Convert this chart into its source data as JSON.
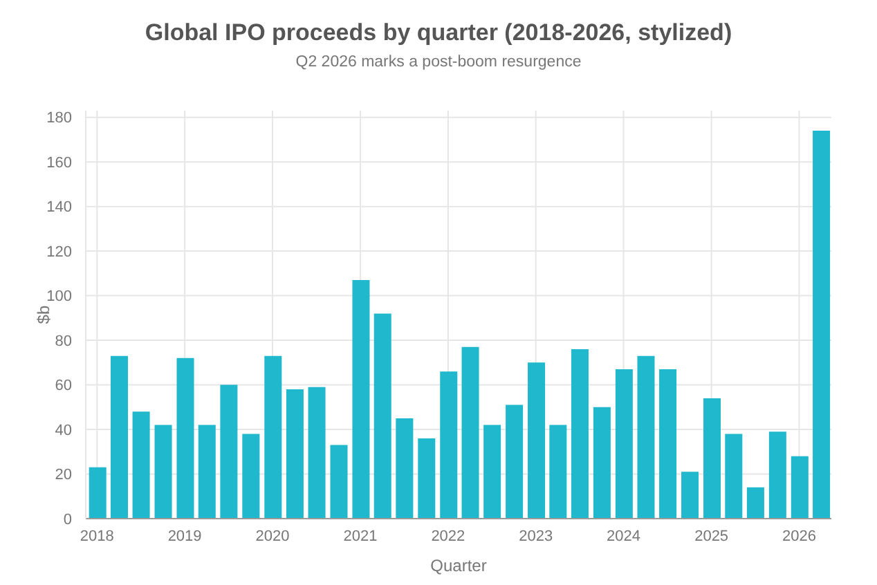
{
  "chart_data": {
    "type": "bar",
    "title": "Global IPO proceeds by quarter (2018-2026, stylized)",
    "subtitle": "Q2 2026 marks a post-boom resurgence",
    "xlabel": "Quarter",
    "ylabel": "$b",
    "x": [
      "2018-01",
      "2018-04",
      "2018-07",
      "2018-10",
      "2019-01",
      "2019-04",
      "2019-07",
      "2019-10",
      "2020-01",
      "2020-04",
      "2020-07",
      "2020-10",
      "2021-01",
      "2021-04",
      "2021-07",
      "2021-10",
      "2022-01",
      "2022-04",
      "2022-07",
      "2022-10",
      "2023-01",
      "2023-04",
      "2023-07",
      "2023-10",
      "2024-01",
      "2024-04",
      "2024-07",
      "2024-10",
      "2025-01",
      "2025-04",
      "2025-07",
      "2025-10",
      "2026-01",
      "2026-04"
    ],
    "values": [
      23,
      73,
      48,
      42,
      72,
      42,
      60,
      38,
      73,
      58,
      59,
      33,
      107,
      92,
      45,
      36,
      66,
      77,
      42,
      51,
      70,
      42,
      76,
      50,
      67,
      73,
      67,
      21,
      54,
      38,
      14,
      39,
      28,
      174
    ],
    "color": "#1fb8cd",
    "xlim": [
      "2017-11-15",
      "2026-05-15"
    ],
    "xticks": [
      "2018",
      "2019",
      "2020",
      "2021",
      "2022",
      "2023",
      "2024",
      "2025",
      "2026"
    ],
    "ylim": [
      0,
      183
    ],
    "yticks": [
      0,
      20,
      40,
      60,
      80,
      100,
      120,
      140,
      160,
      180
    ],
    "grid": true
  }
}
